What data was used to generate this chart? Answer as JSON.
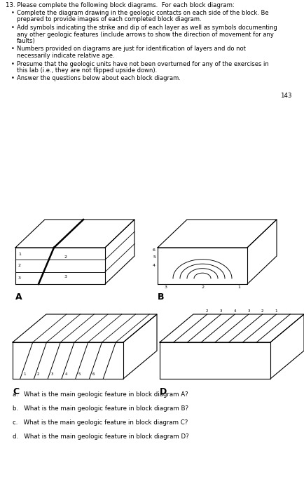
{
  "title_num": "13.",
  "title_text": "Please complete the following block diagrams.  For each block diagram:",
  "bullet1_line1": "Complete the diagram drawing in the geologic contacts on each side of the block. Be",
  "bullet1_line2": "prepared to provide images of each completed block diagram.",
  "bullet2_line1": "Add symbols indicating the strike and dip of each layer as well as symbols documenting",
  "bullet2_line2": "any other geologic features (include arrows to show the direction of movement for any",
  "bullet2_line3": "faults)",
  "bullet3_line1": "Numbers provided on diagrams are just for identification of layers and do not",
  "bullet3_line2": "necessarily indicate relative age.",
  "bullet4_line1": "Presume that the geologic units have not been overturned for any of the exercises in",
  "bullet4_line2": "this lab (i.e., they are not flipped upside down).",
  "bullet5_line1": "Answer the questions below about each block diagram.",
  "page_num": "143",
  "label_A": "A",
  "label_B": "B",
  "label_C": "C",
  "label_D": "D",
  "q_a": "a.   What is the main geologic feature in block diagram A?",
  "q_b": "b.   What is the main geologic feature in block diagram B?",
  "q_c": "c.   What is the main geologic feature in block diagram C?",
  "q_d": "d.   What is the main geologic feature in block diagram D?",
  "bg_color": "#ffffff",
  "line_color": "#000000"
}
